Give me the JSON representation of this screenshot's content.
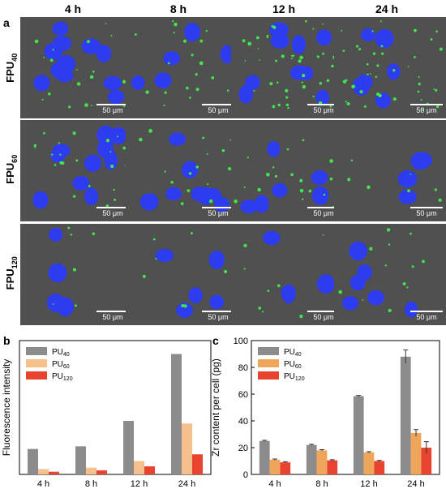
{
  "panel_a": {
    "letter": "a",
    "columns": [
      "4 h",
      "8 h",
      "12 h",
      "24 h"
    ],
    "rows": [
      {
        "base": "FPU",
        "sub": "40"
      },
      {
        "base": "FPU",
        "sub": "60"
      },
      {
        "base": "FPU",
        "sub": "120"
      }
    ],
    "scale_bar_label": "50 μm"
  },
  "chart_data": [
    {
      "type": "bar",
      "panel": "b",
      "categories": [
        "4 h",
        "8 h",
        "12 h",
        "24 h"
      ],
      "series": [
        {
          "name_base": "PU",
          "name_sub": "40",
          "color": "#8c8c8c",
          "values": [
            19,
            21,
            40,
            90
          ]
        },
        {
          "name_base": "PU",
          "name_sub": "60",
          "color": "#f5c08c",
          "values": [
            4,
            5,
            10,
            38
          ]
        },
        {
          "name_base": "PU",
          "name_sub": "120",
          "color": "#e8432e",
          "values": [
            2,
            3,
            6,
            15
          ]
        }
      ],
      "ylabel": "Fluorescence intensity",
      "ylim": [
        0,
        100
      ],
      "legend": "top-left"
    },
    {
      "type": "bar",
      "panel": "c",
      "categories": [
        "4 h",
        "8 h",
        "12 h",
        "24 h"
      ],
      "series": [
        {
          "name_base": "PU",
          "name_sub": "40",
          "color": "#8c8c8c",
          "values": [
            25,
            22,
            58.5,
            88
          ],
          "errors": [
            0.5,
            0.5,
            0.5,
            5
          ]
        },
        {
          "name_base": "PU",
          "name_sub": "60",
          "color": "#efa65a",
          "values": [
            11,
            18,
            16.5,
            31
          ],
          "errors": [
            0.5,
            0.5,
            0.5,
            2.5
          ]
        },
        {
          "name_base": "PU",
          "name_sub": "120",
          "color": "#e8432e",
          "values": [
            9,
            10.5,
            10,
            20
          ],
          "errors": [
            0.5,
            0.5,
            0.5,
            4.5
          ]
        }
      ],
      "ylabel": "Zr content per cell (pg)",
      "ylim": [
        0,
        100
      ],
      "yticks": [
        0,
        20,
        40,
        60,
        80,
        100
      ],
      "legend": "top-left"
    }
  ]
}
